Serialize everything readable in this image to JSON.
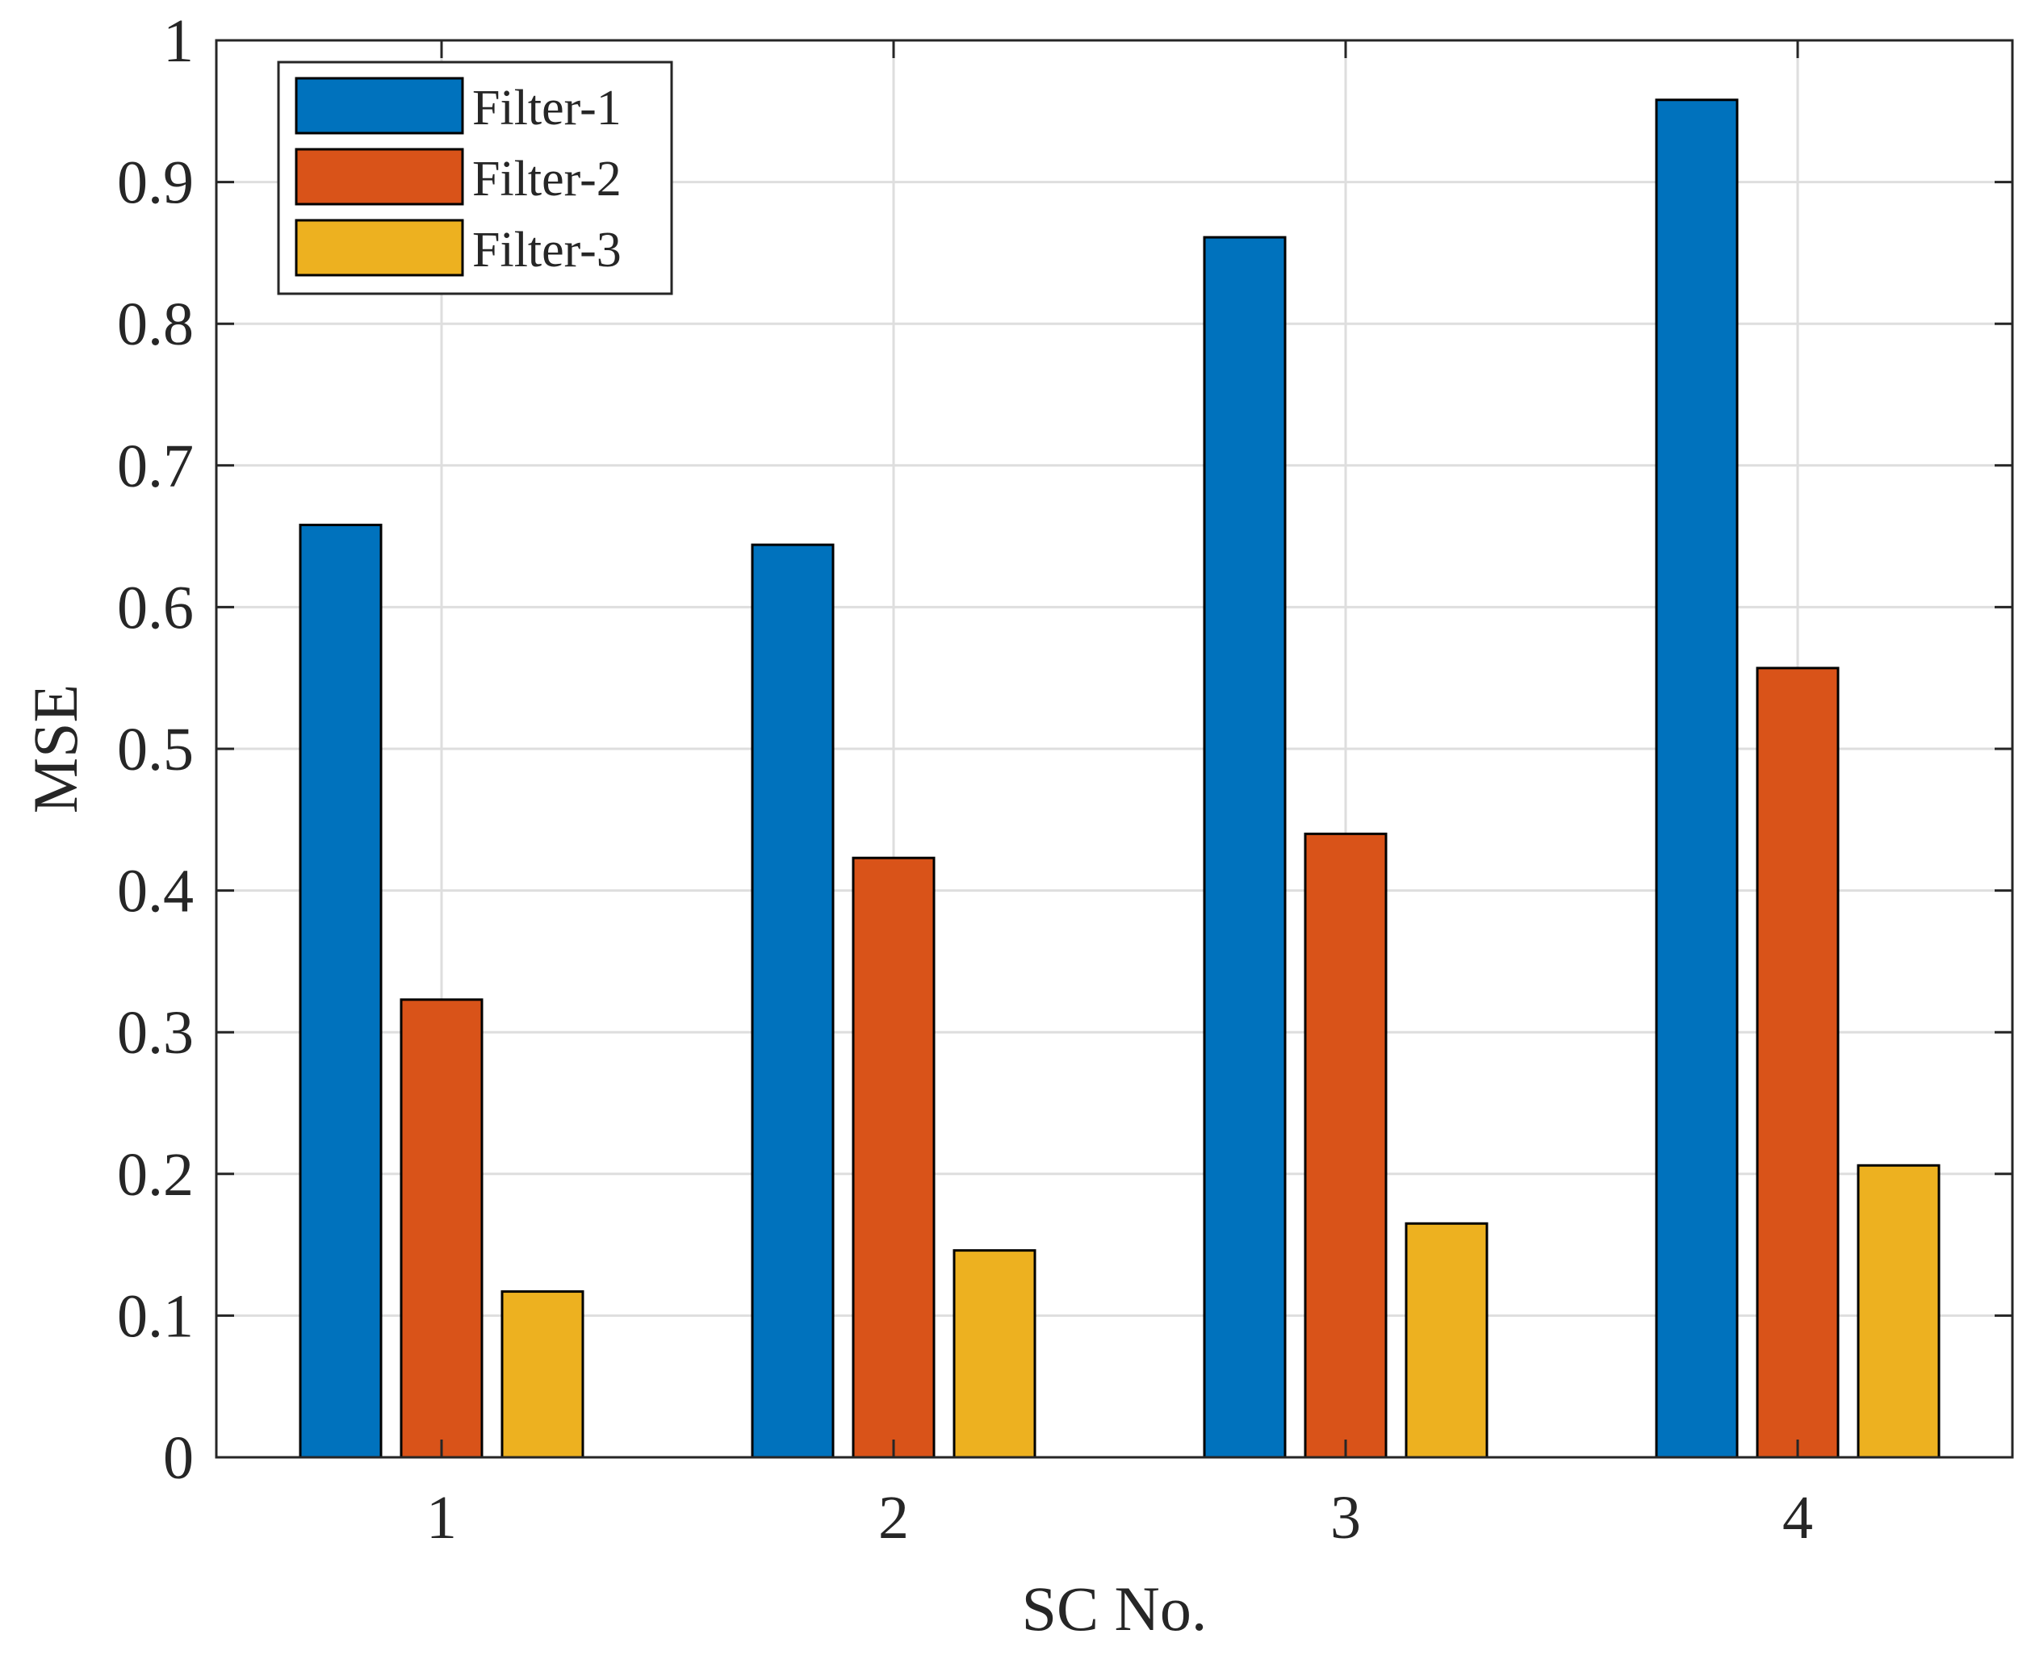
{
  "chart_data": {
    "type": "bar",
    "title": "",
    "xlabel": "SC No.",
    "ylabel": "MSE",
    "categories": [
      "1",
      "2",
      "3",
      "4"
    ],
    "ylim": [
      0,
      1
    ],
    "yticks": [
      "0",
      "0.1",
      "0.2",
      "0.3",
      "0.4",
      "0.5",
      "0.6",
      "0.7",
      "0.8",
      "0.9",
      "1"
    ],
    "grid": true,
    "legend_position": "top-left",
    "series": [
      {
        "name": "Filter-1",
        "color": "#0072BD",
        "values": [
          0.658,
          0.644,
          0.861,
          0.958
        ]
      },
      {
        "name": "Filter-2",
        "color": "#D95319",
        "values": [
          0.323,
          0.423,
          0.44,
          0.557
        ]
      },
      {
        "name": "Filter-3",
        "color": "#EDB120",
        "values": [
          0.117,
          0.146,
          0.165,
          0.206
        ]
      }
    ]
  }
}
